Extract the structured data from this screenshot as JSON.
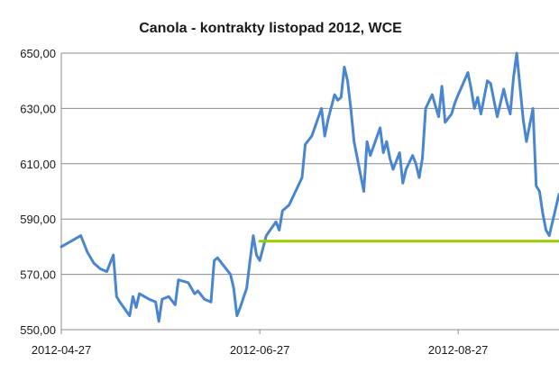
{
  "chart_data": {
    "type": "line",
    "title": "Canola - kontrakty listopad 2012, WCE",
    "xlabel": "",
    "ylabel": "",
    "ylim": [
      550,
      650
    ],
    "yticks": [
      "550,00",
      "570,00",
      "590,00",
      "610,00",
      "630,00",
      "650,00"
    ],
    "yticks_values": [
      550,
      570,
      590,
      610,
      630,
      650
    ],
    "xticks": [
      "2012-04-27",
      "2012-06-27",
      "2012-08-27"
    ],
    "xlim": [
      "2012-04-27",
      "2012-09-27"
    ],
    "grid": true,
    "series": [
      {
        "color": "#4a86d0",
        "x": [
          "2012-04-27",
          "2012-04-30",
          "2012-05-03",
          "2012-05-05",
          "2012-05-07",
          "2012-05-09",
          "2012-05-11",
          "2012-05-13",
          "2012-05-14",
          "2012-05-15",
          "2012-05-18",
          "2012-05-19",
          "2012-05-20",
          "2012-05-21",
          "2012-05-24",
          "2012-05-26",
          "2012-05-27",
          "2012-05-28",
          "2012-05-30",
          "2012-06-01",
          "2012-06-02",
          "2012-06-05",
          "2012-06-07",
          "2012-06-08",
          "2012-06-10",
          "2012-06-12",
          "2012-06-13",
          "2012-06-14",
          "2012-06-16",
          "2012-06-18",
          "2012-06-19",
          "2012-06-20",
          "2012-06-21",
          "2012-06-23",
          "2012-06-24",
          "2012-06-25",
          "2012-06-26",
          "2012-06-27",
          "2012-06-29",
          "2012-07-02",
          "2012-07-03",
          "2012-07-04",
          "2012-07-06",
          "2012-07-08",
          "2012-07-10",
          "2012-07-11",
          "2012-07-13",
          "2012-07-16",
          "2012-07-17",
          "2012-07-18",
          "2012-07-20",
          "2012-07-21",
          "2012-07-22",
          "2012-07-23",
          "2012-07-24",
          "2012-07-25",
          "2012-07-26",
          "2012-07-28",
          "2012-07-29",
          "2012-07-30",
          "2012-07-31",
          "2012-08-03",
          "2012-08-04",
          "2012-08-05",
          "2012-08-06",
          "2012-08-07",
          "2012-08-09",
          "2012-08-10",
          "2012-08-11",
          "2012-08-13",
          "2012-08-14",
          "2012-08-15",
          "2012-08-16",
          "2012-08-17",
          "2012-08-19",
          "2012-08-21",
          "2012-08-22",
          "2012-08-23",
          "2012-08-25",
          "2012-08-26",
          "2012-08-27",
          "2012-08-30",
          "2012-08-31",
          "2012-09-01",
          "2012-09-02",
          "2012-09-03",
          "2012-09-05",
          "2012-09-06",
          "2012-09-07",
          "2012-09-08",
          "2012-09-10",
          "2012-09-11",
          "2012-09-12",
          "2012-09-13",
          "2012-09-14",
          "2012-09-16",
          "2012-09-17",
          "2012-09-19",
          "2012-09-20",
          "2012-09-21",
          "2012-09-22",
          "2012-09-23",
          "2012-09-24",
          "2012-09-27"
        ],
        "y": [
          580,
          582,
          584,
          578,
          574,
          572,
          571,
          577,
          562,
          560,
          555,
          562,
          558,
          563,
          561,
          560,
          553,
          561,
          562,
          559,
          568,
          567,
          563,
          564,
          561,
          560,
          575,
          576,
          573,
          570,
          565,
          555,
          558,
          565,
          575,
          584,
          577,
          575,
          584,
          589,
          586,
          593,
          595,
          600,
          605,
          617,
          620,
          630,
          620,
          626,
          635,
          633,
          634,
          645,
          640,
          630,
          618,
          606,
          600,
          618,
          613,
          623,
          614,
          618,
          612,
          608,
          614,
          603,
          608,
          613,
          610,
          605,
          612,
          630,
          635,
          627,
          638,
          625,
          628,
          632,
          635,
          643,
          637,
          630,
          634,
          628,
          640,
          639,
          633,
          627,
          637,
          632,
          628,
          641,
          650,
          626,
          618,
          630,
          602,
          600,
          592,
          586,
          584,
          599
        ]
      },
      {
        "color": "#99cc00",
        "x": [
          "2012-06-27",
          "2012-09-27"
        ],
        "y": [
          582,
          582
        ]
      }
    ]
  }
}
